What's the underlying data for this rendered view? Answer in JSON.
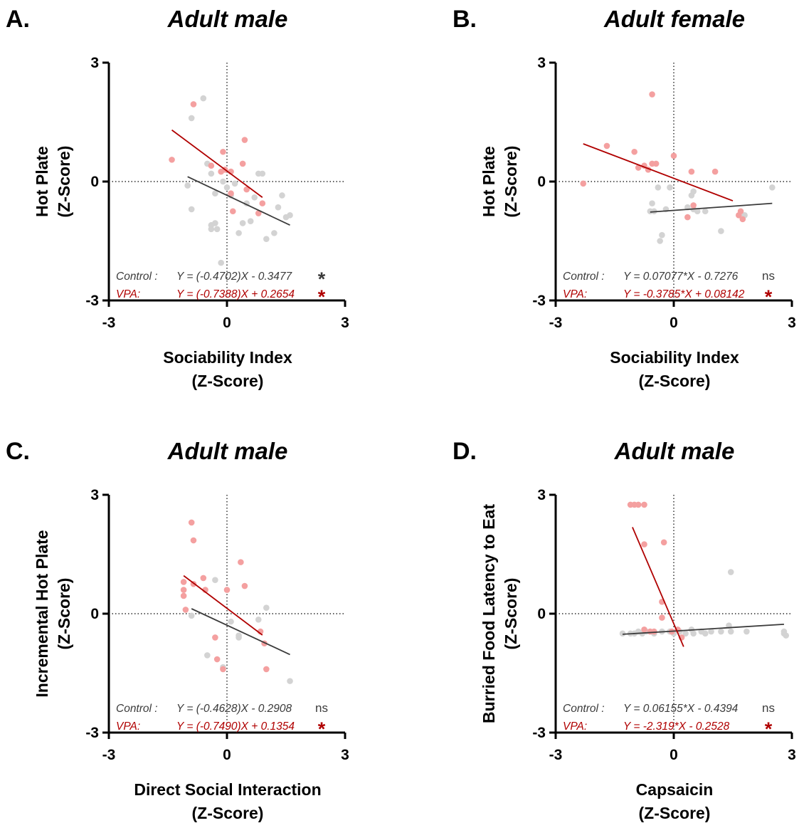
{
  "chart_data": [
    {
      "panel": "A.",
      "type": "scatter",
      "title": "Adult male",
      "xlabel": [
        "Sociability Index",
        "(Z-Score)"
      ],
      "ylabel": [
        "Hot Plate",
        "(Z-Score)"
      ],
      "xlim": [
        -3,
        3
      ],
      "ylim": [
        -3,
        3
      ],
      "xticks": [
        "-3",
        "0",
        "3"
      ],
      "yticks": [
        "-3",
        "0",
        "3"
      ],
      "colors": {
        "control": "#d3d3d3",
        "vpa": "#f4a0a0",
        "control_line": "#3b3b3b",
        "vpa_line": "#b00000"
      },
      "series": [
        {
          "group": "control",
          "points": [
            [
              -0.6,
              2.1
            ],
            [
              -0.9,
              1.6
            ],
            [
              -1.0,
              -0.1
            ],
            [
              -0.9,
              -0.7
            ],
            [
              -0.5,
              0.45
            ],
            [
              -0.4,
              0.2
            ],
            [
              -0.3,
              -0.3
            ],
            [
              -0.4,
              -1.1
            ],
            [
              -0.3,
              -1.05
            ],
            [
              -0.25,
              -1.2
            ],
            [
              -0.15,
              -2.05
            ],
            [
              -0.1,
              0.0
            ],
            [
              0.0,
              -0.15
            ],
            [
              0.1,
              -0.35
            ],
            [
              0.2,
              -0.05
            ],
            [
              0.3,
              -1.3
            ],
            [
              0.4,
              -1.05
            ],
            [
              0.5,
              -0.55
            ],
            [
              0.6,
              -1.0
            ],
            [
              0.7,
              -0.4
            ],
            [
              0.8,
              0.2
            ],
            [
              0.9,
              0.2
            ],
            [
              1.0,
              -1.45
            ],
            [
              1.2,
              -1.3
            ],
            [
              1.3,
              -0.65
            ],
            [
              1.4,
              -0.35
            ],
            [
              1.5,
              -0.9
            ],
            [
              1.6,
              -0.85
            ],
            [
              -0.4,
              -1.2
            ]
          ]
        },
        {
          "group": "vpa",
          "points": [
            [
              -1.4,
              0.55
            ],
            [
              -0.85,
              1.95
            ],
            [
              -0.4,
              0.4
            ],
            [
              -0.1,
              0.75
            ],
            [
              -0.15,
              0.25
            ],
            [
              0.1,
              0.25
            ],
            [
              0.1,
              -0.3
            ],
            [
              0.15,
              -0.75
            ],
            [
              0.4,
              0.45
            ],
            [
              0.45,
              1.05
            ],
            [
              0.5,
              -0.2
            ],
            [
              0.8,
              -0.8
            ],
            [
              0.9,
              -0.55
            ],
            [
              -0.05,
              0.3
            ]
          ]
        }
      ],
      "fits": [
        {
          "group": "control",
          "slope": -0.4702,
          "intercept": -0.3477,
          "x_range": [
            -1.0,
            1.6
          ]
        },
        {
          "group": "vpa",
          "slope": -0.7388,
          "intercept": 0.2654,
          "x_range": [
            -1.4,
            0.9
          ]
        }
      ],
      "annotations": [
        {
          "group": "control",
          "label": "Control :",
          "equation": "Y = (-0.4702)X - 0.3477",
          "sig": "*"
        },
        {
          "group": "vpa",
          "label": "VPA:",
          "equation": "Y = (-0.7388)X + 0.2654",
          "sig": "*"
        }
      ]
    },
    {
      "panel": "B.",
      "type": "scatter",
      "title": "Adult female",
      "xlabel": [
        "Sociability Index",
        "(Z-Score)"
      ],
      "ylabel": [
        "Hot Plate",
        "(Z-Score)"
      ],
      "xlim": [
        -3,
        3
      ],
      "ylim": [
        -3,
        3
      ],
      "xticks": [
        "-3",
        "0",
        "3"
      ],
      "yticks": [
        "-3",
        "0",
        "3"
      ],
      "colors": {
        "control": "#d3d3d3",
        "vpa": "#f4a0a0",
        "control_line": "#3b3b3b",
        "vpa_line": "#b00000"
      },
      "series": [
        {
          "group": "control",
          "points": [
            [
              -0.6,
              -0.75
            ],
            [
              -0.55,
              -0.55
            ],
            [
              -0.5,
              -0.75
            ],
            [
              -0.4,
              -0.15
            ],
            [
              -0.3,
              -1.35
            ],
            [
              -0.35,
              -1.5
            ],
            [
              -0.2,
              -0.7
            ],
            [
              -0.1,
              -0.15
            ],
            [
              0.35,
              -0.65
            ],
            [
              0.45,
              -0.35
            ],
            [
              0.5,
              -0.25
            ],
            [
              0.6,
              -0.75
            ],
            [
              0.8,
              -0.75
            ],
            [
              1.2,
              -1.25
            ],
            [
              1.8,
              -0.85
            ],
            [
              2.5,
              -0.15
            ],
            [
              0.5,
              -0.7
            ]
          ]
        },
        {
          "group": "vpa",
          "points": [
            [
              -2.3,
              -0.05
            ],
            [
              -1.7,
              0.9
            ],
            [
              -1.0,
              0.75
            ],
            [
              -0.9,
              0.35
            ],
            [
              -0.75,
              0.4
            ],
            [
              -0.65,
              0.3
            ],
            [
              -0.55,
              0.45
            ],
            [
              -0.45,
              0.45
            ],
            [
              -0.55,
              2.2
            ],
            [
              0.0,
              0.65
            ],
            [
              0.45,
              0.25
            ],
            [
              0.5,
              -0.6
            ],
            [
              1.05,
              0.25
            ],
            [
              1.7,
              -0.75
            ],
            [
              1.75,
              -0.95
            ],
            [
              1.65,
              -0.85
            ],
            [
              0.35,
              -0.9
            ]
          ]
        }
      ],
      "fits": [
        {
          "group": "control",
          "slope": 0.07077,
          "intercept": -0.7276,
          "x_range": [
            -0.6,
            2.5
          ]
        },
        {
          "group": "vpa",
          "slope": -0.3785,
          "intercept": 0.08142,
          "x_range": [
            -2.3,
            1.5
          ]
        }
      ],
      "annotations": [
        {
          "group": "control",
          "label": "Control :",
          "equation": "Y = 0.07077*X - 0.7276",
          "sig": "ns"
        },
        {
          "group": "vpa",
          "label": "VPA:",
          "equation": "Y = -0.3785*X + 0.08142",
          "sig": "*"
        }
      ]
    },
    {
      "panel": "C.",
      "type": "scatter",
      "title": "Adult male",
      "xlabel": [
        "Direct Social  Interaction",
        "(Z-Score)"
      ],
      "ylabel": [
        "Incremental Hot Plate",
        "(Z-Score)"
      ],
      "xlim": [
        -3,
        3
      ],
      "ylim": [
        -3,
        3
      ],
      "xticks": [
        "-3",
        "0",
        "3"
      ],
      "yticks": [
        "-3",
        "0",
        "3"
      ],
      "colors": {
        "control": "#d3d3d3",
        "vpa": "#f4a0a0",
        "control_line": "#3b3b3b",
        "vpa_line": "#b00000"
      },
      "series": [
        {
          "group": "control",
          "points": [
            [
              -0.9,
              -0.05
            ],
            [
              -0.5,
              -1.05
            ],
            [
              -0.3,
              0.85
            ],
            [
              -0.1,
              -1.35
            ],
            [
              0.1,
              -0.2
            ],
            [
              0.3,
              -0.55
            ],
            [
              0.8,
              -0.15
            ],
            [
              1.0,
              0.15
            ],
            [
              1.6,
              -1.7
            ],
            [
              0.3,
              -0.6
            ]
          ]
        },
        {
          "group": "vpa",
          "points": [
            [
              -1.1,
              0.8
            ],
            [
              -1.1,
              0.6
            ],
            [
              -1.1,
              0.45
            ],
            [
              -1.05,
              0.1
            ],
            [
              -0.9,
              2.3
            ],
            [
              -0.85,
              1.85
            ],
            [
              -0.85,
              0.75
            ],
            [
              -0.6,
              0.9
            ],
            [
              -0.55,
              0.6
            ],
            [
              -0.3,
              -0.6
            ],
            [
              -0.25,
              -1.15
            ],
            [
              0.0,
              0.6
            ],
            [
              0.35,
              1.3
            ],
            [
              0.45,
              0.7
            ],
            [
              0.85,
              -0.45
            ],
            [
              0.95,
              -0.75
            ],
            [
              1.0,
              -1.4
            ],
            [
              -0.1,
              -1.4
            ]
          ]
        }
      ],
      "fits": [
        {
          "group": "control",
          "slope": -0.4628,
          "intercept": -0.2908,
          "x_range": [
            -0.9,
            1.6
          ]
        },
        {
          "group": "vpa",
          "slope": -0.749,
          "intercept": 0.1354,
          "x_range": [
            -1.1,
            0.9
          ]
        }
      ],
      "annotations": [
        {
          "group": "control",
          "label": "Control :",
          "equation": "Y = (-0.4628)X - 0.2908",
          "sig": "ns"
        },
        {
          "group": "vpa",
          "label": "VPA:",
          "equation": "Y = (-0.7490)X + 0.1354",
          "sig": "*"
        }
      ]
    },
    {
      "panel": "D.",
      "type": "scatter",
      "title": "Adult male",
      "xlabel": [
        "Capsaicin",
        "(Z-Score)"
      ],
      "ylabel": [
        "Burried Food Latency to Eat",
        "(Z-Score)"
      ],
      "xlim": [
        -3,
        3
      ],
      "ylim": [
        -3,
        3
      ],
      "xticks": [
        "-3",
        "0",
        "3"
      ],
      "yticks": [
        "-3",
        "0",
        "3"
      ],
      "colors": {
        "control": "#d3d3d3",
        "vpa": "#f4a0a0",
        "control_line": "#3b3b3b",
        "vpa_line": "#b00000"
      },
      "series": [
        {
          "group": "control",
          "points": [
            [
              -1.3,
              -0.5
            ],
            [
              -1.1,
              -0.5
            ],
            [
              -1.0,
              -0.5
            ],
            [
              -0.9,
              -0.45
            ],
            [
              -0.8,
              -0.5
            ],
            [
              -0.7,
              -0.45
            ],
            [
              -0.5,
              -0.5
            ],
            [
              -0.3,
              -0.45
            ],
            [
              -0.1,
              -0.45
            ],
            [
              0.0,
              -0.5
            ],
            [
              0.15,
              -0.45
            ],
            [
              0.3,
              -0.5
            ],
            [
              0.45,
              -0.4
            ],
            [
              0.5,
              -0.5
            ],
            [
              0.7,
              -0.45
            ],
            [
              0.8,
              -0.5
            ],
            [
              0.95,
              -0.45
            ],
            [
              1.2,
              -0.45
            ],
            [
              1.4,
              -0.3
            ],
            [
              1.45,
              -0.45
            ],
            [
              1.45,
              1.05
            ],
            [
              1.85,
              -0.45
            ],
            [
              2.8,
              -0.5
            ],
            [
              2.8,
              -0.45
            ],
            [
              2.85,
              -0.55
            ]
          ]
        },
        {
          "group": "vpa",
          "points": [
            [
              -1.1,
              2.75
            ],
            [
              -1.0,
              2.75
            ],
            [
              -0.9,
              2.75
            ],
            [
              -0.75,
              2.75
            ],
            [
              -0.75,
              1.75
            ],
            [
              -0.25,
              1.8
            ],
            [
              -0.3,
              0.3
            ],
            [
              -0.3,
              -0.1
            ],
            [
              -0.5,
              -0.45
            ],
            [
              -0.75,
              -0.4
            ],
            [
              -0.6,
              -0.45
            ],
            [
              -0.05,
              -0.45
            ],
            [
              0.1,
              -0.4
            ],
            [
              0.2,
              -0.6
            ]
          ]
        }
      ],
      "fits": [
        {
          "group": "control",
          "slope": 0.06155,
          "intercept": -0.4394,
          "x_range": [
            -1.3,
            2.8
          ]
        },
        {
          "group": "vpa",
          "slope": -2.319,
          "intercept": -0.2528,
          "x_range": [
            -1.05,
            0.25
          ]
        }
      ],
      "annotations": [
        {
          "group": "control",
          "label": "Control :",
          "equation": "Y = 0.06155*X - 0.4394",
          "sig": "ns"
        },
        {
          "group": "vpa",
          "label": "VPA:",
          "equation": "Y = -2.319*X - 0.2528",
          "sig": "*"
        }
      ]
    }
  ]
}
